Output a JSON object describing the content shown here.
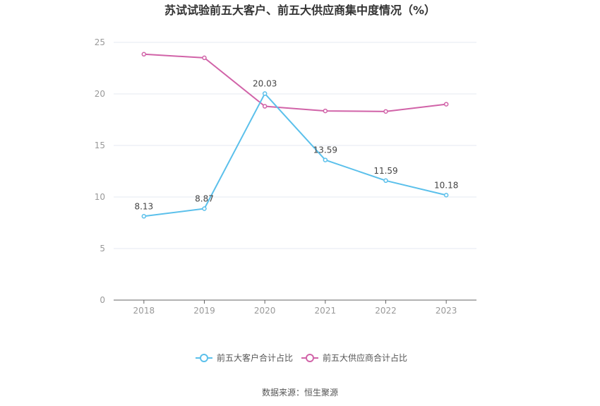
{
  "chart_data": {
    "type": "line",
    "title": "苏试试验前五大客户、前五大供应商集中度情况（%）",
    "xlabel": "",
    "ylabel": "",
    "categories": [
      "2018",
      "2019",
      "2020",
      "2021",
      "2022",
      "2023"
    ],
    "ylim": [
      0,
      25
    ],
    "yticks": [
      0,
      5,
      10,
      15,
      20,
      25
    ],
    "grid": true,
    "legend_position": "bottom",
    "series": [
      {
        "name": "前五大客户合计占比",
        "color": "#5bc0eb",
        "values": [
          8.13,
          8.87,
          20.03,
          13.59,
          11.59,
          10.18
        ],
        "labels": [
          "8.13",
          "8.87",
          "20.03",
          "13.59",
          "11.59",
          "10.18"
        ],
        "show_labels": true
      },
      {
        "name": "前五大供应商合计占比",
        "color": "#d163a8",
        "values": [
          23.85,
          23.5,
          18.8,
          18.35,
          18.3,
          19.0
        ],
        "show_labels": false
      }
    ]
  },
  "source": "数据来源：恒生聚源"
}
